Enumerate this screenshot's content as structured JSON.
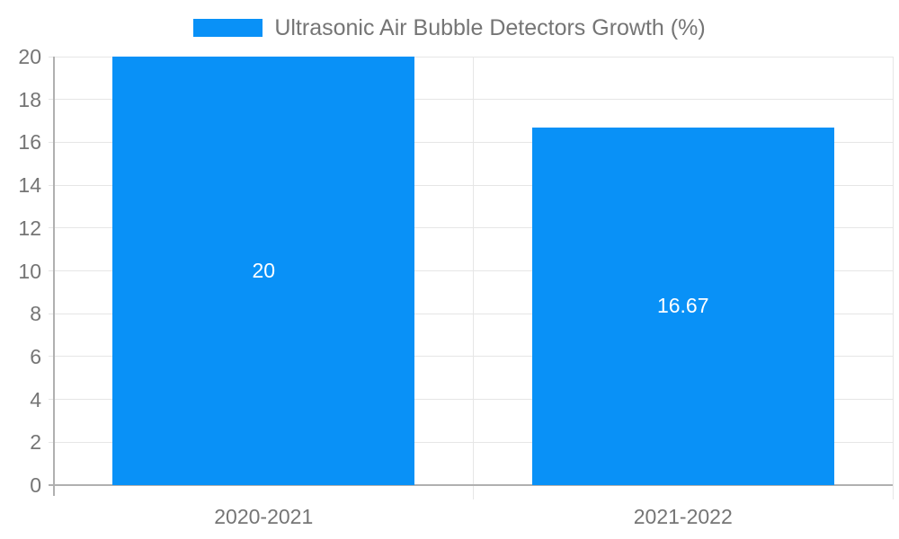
{
  "chart_data": {
    "type": "bar",
    "categories": [
      "2020-2021",
      "2021-2022"
    ],
    "series": [
      {
        "name": "Ultrasonic Air Bubble Detectors Growth (%)",
        "values": [
          20,
          16.67
        ]
      }
    ],
    "value_labels": [
      "20",
      "16.67"
    ],
    "title": "Ultrasonic Air Bubble Detectors Growth (%)",
    "xlabel": "",
    "ylabel": "",
    "ylim": [
      0,
      20
    ],
    "ytick_step": 2,
    "ytick_labels": [
      "0",
      "2",
      "4",
      "6",
      "8",
      "10",
      "12",
      "14",
      "16",
      "18",
      "20"
    ],
    "grid": true,
    "legend_position": "top-center",
    "bar_width_fraction": 0.72
  },
  "colors": {
    "bar": "#0991F7",
    "gridline": "#e6e6e6",
    "axis": "#b0b0b0",
    "label_text": "#757575",
    "bar_label_text": "#ffffff",
    "background": "#ffffff"
  }
}
